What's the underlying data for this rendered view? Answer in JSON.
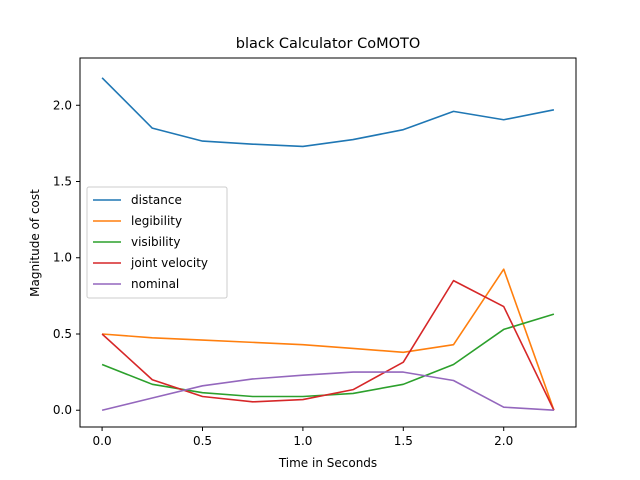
{
  "chart_data": {
    "type": "line",
    "title": "black Calculator CoMOTO",
    "xlabel": "Time in Seconds",
    "ylabel": "Magnitude of cost",
    "xlim": [
      -0.11,
      2.36
    ],
    "ylim": [
      -0.11,
      2.31
    ],
    "xticks": [
      0.0,
      0.5,
      1.0,
      1.5,
      2.0
    ],
    "xtick_labels": [
      "0.0",
      "0.5",
      "1.0",
      "1.5",
      "2.0"
    ],
    "yticks": [
      0.0,
      0.5,
      1.0,
      1.5,
      2.0
    ],
    "ytick_labels": [
      "0.0",
      "0.5",
      "1.0",
      "1.5",
      "2.0"
    ],
    "grid": false,
    "legend_position": "center-left",
    "x": [
      0.0,
      0.25,
      0.5,
      0.75,
      1.0,
      1.25,
      1.5,
      1.75,
      2.0,
      2.25
    ],
    "series": [
      {
        "name": "distance",
        "color": "#1f77b4",
        "values": [
          2.18,
          1.85,
          1.765,
          1.745,
          1.73,
          1.775,
          1.84,
          1.96,
          1.905,
          1.97
        ]
      },
      {
        "name": "legibility",
        "color": "#ff7f0e",
        "values": [
          0.5,
          0.475,
          0.46,
          0.445,
          0.43,
          0.405,
          0.38,
          0.43,
          0.925,
          0.0
        ]
      },
      {
        "name": "visibility",
        "color": "#2ca02c",
        "values": [
          0.3,
          0.17,
          0.115,
          0.09,
          0.09,
          0.11,
          0.17,
          0.3,
          0.53,
          0.63
        ]
      },
      {
        "name": "joint velocity",
        "color": "#d62728",
        "values": [
          0.5,
          0.2,
          0.09,
          0.055,
          0.07,
          0.135,
          0.315,
          0.85,
          0.68,
          0.0
        ]
      },
      {
        "name": "nominal",
        "color": "#9467bd",
        "values": [
          0.0,
          0.08,
          0.16,
          0.205,
          0.23,
          0.25,
          0.25,
          0.195,
          0.02,
          0.0
        ]
      }
    ]
  }
}
